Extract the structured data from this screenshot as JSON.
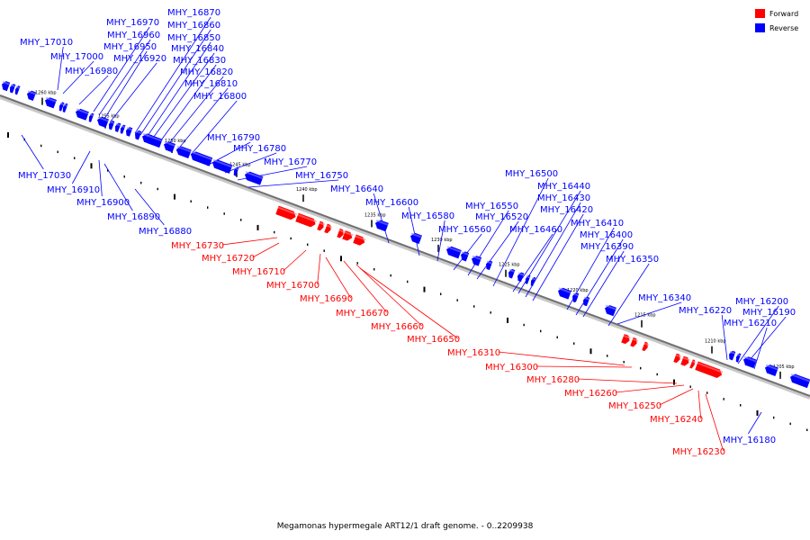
{
  "legend": [
    {
      "label": "Forward",
      "color": "#ff0000"
    },
    {
      "label": "Reverse",
      "color": "#0000ff"
    }
  ],
  "caption": "Megamonas hypermegale ART12/1 draft genome. - 0..2209938",
  "colors": {
    "forward": "#ff0000",
    "reverse": "#0000ff",
    "axis": "#808080"
  },
  "ticks": [
    "1260 kbp",
    "1255 kbp",
    "1250 kbp",
    "1245 kbp",
    "1240 kbp",
    "1235 kbp",
    "1230 kbp",
    "1225 kbp",
    "1220 kbp",
    "1215 kbp",
    "1210 kbp",
    "1205 kbp"
  ],
  "genes": [
    {
      "label": "MHY_17010",
      "strand": "reverse"
    },
    {
      "label": "MHY_17000",
      "strand": "reverse"
    },
    {
      "label": "MHY_16980",
      "strand": "reverse"
    },
    {
      "label": "MHY_16970",
      "strand": "reverse"
    },
    {
      "label": "MHY_16960",
      "strand": "reverse"
    },
    {
      "label": "MHY_16950",
      "strand": "reverse"
    },
    {
      "label": "MHY_16920",
      "strand": "reverse"
    },
    {
      "label": "MHY_16870",
      "strand": "reverse"
    },
    {
      "label": "MHY_16860",
      "strand": "reverse"
    },
    {
      "label": "MHY_16850",
      "strand": "reverse"
    },
    {
      "label": "MHY_16840",
      "strand": "reverse"
    },
    {
      "label": "MHY_16830",
      "strand": "reverse"
    },
    {
      "label": "MHY_16820",
      "strand": "reverse"
    },
    {
      "label": "MHY_16810",
      "strand": "reverse"
    },
    {
      "label": "MHY_16800",
      "strand": "reverse"
    },
    {
      "label": "MHY_16790",
      "strand": "reverse"
    },
    {
      "label": "MHY_16780",
      "strand": "reverse"
    },
    {
      "label": "MHY_16770",
      "strand": "reverse"
    },
    {
      "label": "MHY_16750",
      "strand": "reverse"
    },
    {
      "label": "MHY_16640",
      "strand": "reverse"
    },
    {
      "label": "MHY_16600",
      "strand": "reverse"
    },
    {
      "label": "MHY_16580",
      "strand": "reverse"
    },
    {
      "label": "MHY_16560",
      "strand": "reverse"
    },
    {
      "label": "MHY_16550",
      "strand": "reverse"
    },
    {
      "label": "MHY_16520",
      "strand": "reverse"
    },
    {
      "label": "MHY_16500",
      "strand": "reverse"
    },
    {
      "label": "MHY_16460",
      "strand": "reverse"
    },
    {
      "label": "MHY_16440",
      "strand": "reverse"
    },
    {
      "label": "MHY_16430",
      "strand": "reverse"
    },
    {
      "label": "MHY_16420",
      "strand": "reverse"
    },
    {
      "label": "MHY_16410",
      "strand": "reverse"
    },
    {
      "label": "MHY_16400",
      "strand": "reverse"
    },
    {
      "label": "MHY_16390",
      "strand": "reverse"
    },
    {
      "label": "MHY_16350",
      "strand": "reverse"
    },
    {
      "label": "MHY_16340",
      "strand": "reverse"
    },
    {
      "label": "MHY_16220",
      "strand": "reverse"
    },
    {
      "label": "MHY_16200",
      "strand": "reverse"
    },
    {
      "label": "MHY_16190",
      "strand": "reverse"
    },
    {
      "label": "MHY_16210",
      "strand": "reverse"
    },
    {
      "label": "MHY_17030",
      "strand": "reverse"
    },
    {
      "label": "MHY_16910",
      "strand": "reverse"
    },
    {
      "label": "MHY_16900",
      "strand": "reverse"
    },
    {
      "label": "MHY_16890",
      "strand": "reverse"
    },
    {
      "label": "MHY_16880",
      "strand": "reverse"
    },
    {
      "label": "MHY_16180",
      "strand": "reverse"
    },
    {
      "label": "MHY_16730",
      "strand": "forward"
    },
    {
      "label": "MHY_16720",
      "strand": "forward"
    },
    {
      "label": "MHY_16710",
      "strand": "forward"
    },
    {
      "label": "MHY_16700",
      "strand": "forward"
    },
    {
      "label": "MHY_16690",
      "strand": "forward"
    },
    {
      "label": "MHY_16670",
      "strand": "forward"
    },
    {
      "label": "MHY_16660",
      "strand": "forward"
    },
    {
      "label": "MHY_16650",
      "strand": "forward"
    },
    {
      "label": "MHY_16310",
      "strand": "forward"
    },
    {
      "label": "MHY_16300",
      "strand": "forward"
    },
    {
      "label": "MHY_16280",
      "strand": "forward"
    },
    {
      "label": "MHY_16260",
      "strand": "forward"
    },
    {
      "label": "MHY_16250",
      "strand": "forward"
    },
    {
      "label": "MHY_16240",
      "strand": "forward"
    },
    {
      "label": "MHY_16230",
      "strand": "forward"
    }
  ]
}
